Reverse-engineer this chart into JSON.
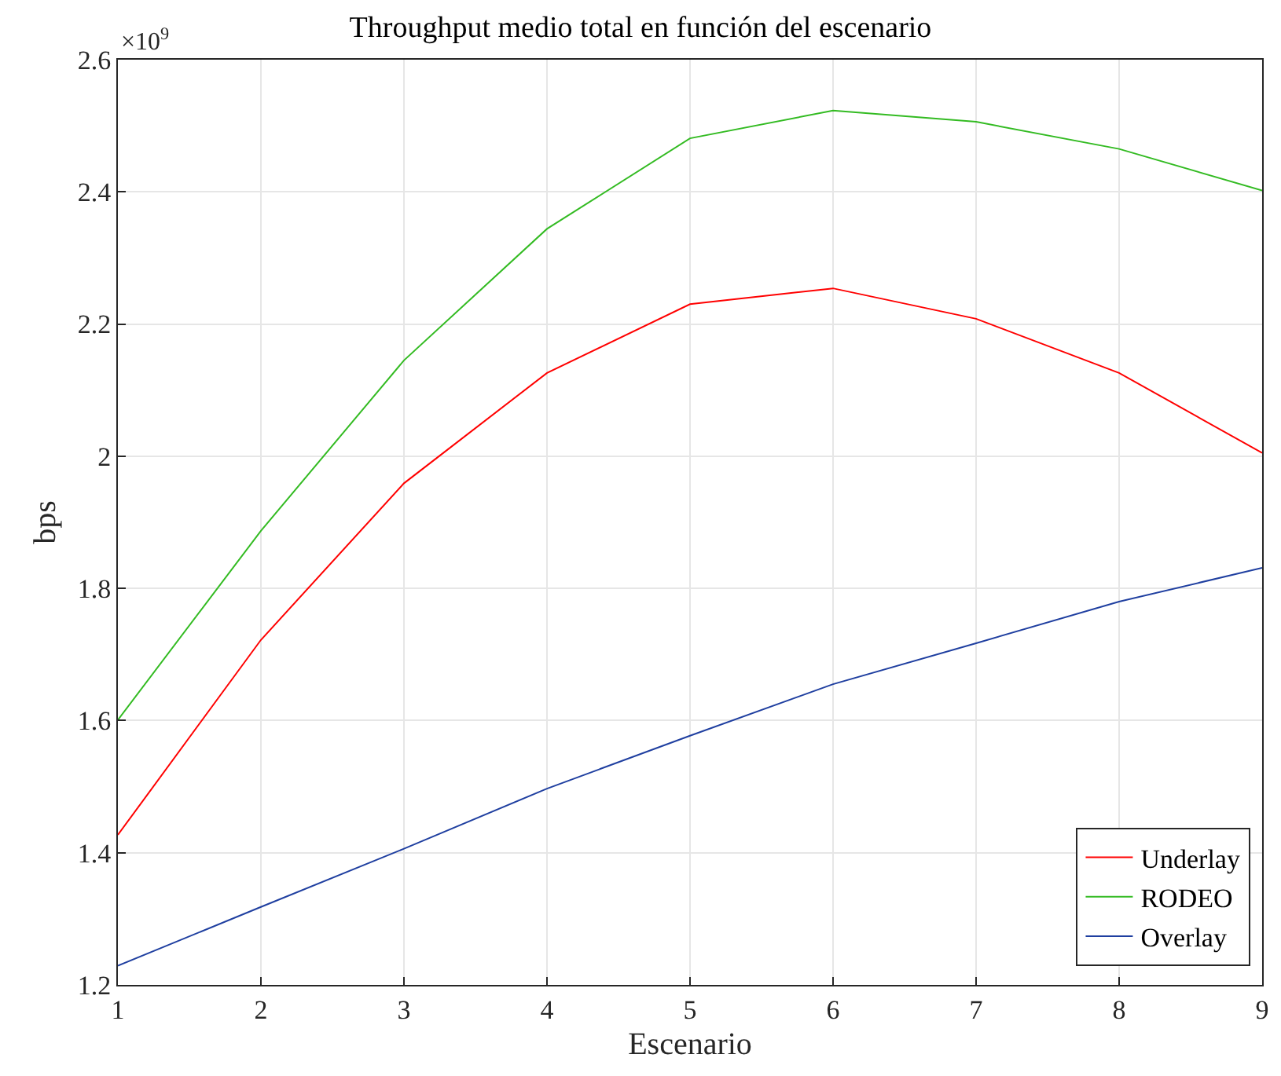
{
  "chart_data": {
    "type": "line",
    "title": "Throughput medio total en función del escenario",
    "xlabel": "Escenario",
    "ylabel": "bps",
    "x": [
      1,
      2,
      3,
      4,
      5,
      6,
      7,
      8,
      9
    ],
    "series": [
      {
        "name": "Underlay",
        "color": "#ff0000",
        "values": [
          1.427,
          1.722,
          1.959,
          2.126,
          2.23,
          2.254,
          2.208,
          2.126,
          2.005
        ]
      },
      {
        "name": "RODEO",
        "color": "#33bb22",
        "values": [
          1.601,
          1.887,
          2.145,
          2.344,
          2.481,
          2.523,
          2.506,
          2.465,
          2.402
        ]
      },
      {
        "name": "Overlay",
        "color": "#1f3fa0",
        "values": [
          1.229,
          1.318,
          1.406,
          1.497,
          1.577,
          1.655,
          1.717,
          1.78,
          1.831
        ]
      }
    ],
    "xlim": [
      1,
      9
    ],
    "xticks": [
      1,
      2,
      3,
      4,
      5,
      6,
      7,
      8,
      9
    ],
    "ylim": [
      1.2,
      2.6
    ],
    "yticks": [
      1.2,
      1.4,
      1.6,
      1.8,
      2,
      2.2,
      2.4,
      2.6
    ],
    "annotations": [
      "×10$^{9}$"
    ],
    "grid": true,
    "legend": "bottom right",
    "marker": "none",
    "line_style": "solid"
  }
}
